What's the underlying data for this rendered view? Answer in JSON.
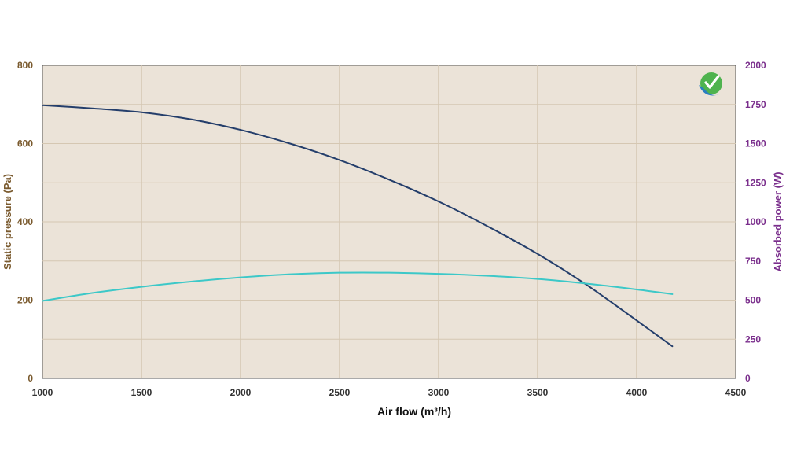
{
  "chart_data": {
    "type": "line",
    "title": "",
    "xlabel": "Air flow (m³/h)",
    "ylabel_left": "Static pressure (Pa)",
    "ylabel_right": "Absorbed power (W)",
    "xlim": [
      1000,
      4500
    ],
    "ylim_left": [
      0,
      800
    ],
    "ylim_right": [
      0,
      2000
    ],
    "x_ticks": [
      "1000",
      "1500",
      "2000",
      "2500",
      "3000",
      "3500",
      "4000",
      "4500"
    ],
    "y_left_ticks": [
      "0",
      "200",
      "400",
      "600",
      "800"
    ],
    "y_right_ticks": [
      "0",
      "250",
      "500",
      "750",
      "1000",
      "1250",
      "1500",
      "1750",
      "2000"
    ],
    "grid": true,
    "legend": "none",
    "series": [
      {
        "axis": "left",
        "color": "#243e6b",
        "x": [
          1000,
          1250,
          1500,
          1750,
          2000,
          2250,
          2500,
          2750,
          3000,
          3250,
          3500,
          3750,
          4000,
          4180
        ],
        "y": [
          698,
          690,
          680,
          662,
          635,
          600,
          558,
          508,
          452,
          388,
          318,
          238,
          148,
          82
        ]
      },
      {
        "axis": "right",
        "color": "#3cc8c8",
        "x": [
          1000,
          1250,
          1500,
          1750,
          2000,
          2250,
          2500,
          2750,
          3000,
          3250,
          3500,
          3750,
          4000,
          4180
        ],
        "y": [
          495,
          545,
          585,
          618,
          645,
          665,
          675,
          675,
          668,
          655,
          635,
          605,
          568,
          538
        ]
      }
    ],
    "colors": {
      "plot_bg": "#ebe3d8",
      "grid": "#d5c7b2",
      "border": "#555555"
    }
  }
}
